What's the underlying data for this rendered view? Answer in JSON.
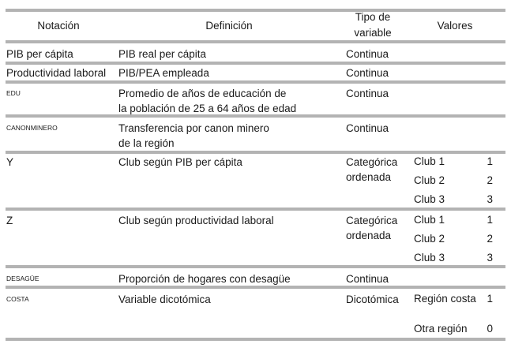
{
  "header": {
    "notacion": "Notación",
    "definicion": "Definición",
    "tipo_line1": "Tipo de",
    "tipo_line2": "variable",
    "valores": "Valores"
  },
  "rows": [
    {
      "notation": "PIB per cápita",
      "definition": [
        "PIB real per cápita"
      ],
      "type": [
        "Continua"
      ],
      "values": []
    },
    {
      "notation": "Productividad laboral",
      "definition": [
        "PIB/PEA empleada"
      ],
      "type": [
        "Continua"
      ],
      "values": []
    },
    {
      "notation": "EDU",
      "definition": [
        "Promedio de años de educación de",
        "la población de 25 a 64 años de edad"
      ],
      "type": [
        "Continua"
      ],
      "values": []
    },
    {
      "notation": "CANONMINERO",
      "definition": [
        "Transferencia por canon minero",
        "de la región"
      ],
      "type": [
        "Continua"
      ],
      "values": []
    },
    {
      "notation": "Y",
      "definition": [
        "Club según PIB per cápita"
      ],
      "type": [
        "Categórica",
        "ordenada"
      ],
      "values": [
        {
          "label": "Club 1",
          "code": "1"
        },
        {
          "label": "Club 2",
          "code": "2"
        },
        {
          "label": "Club 3",
          "code": "3"
        }
      ]
    },
    {
      "notation": "Z",
      "definition": [
        "Club según productividad laboral"
      ],
      "type": [
        "Categórica",
        "ordenada"
      ],
      "values": [
        {
          "label": "Club 1",
          "code": "1"
        },
        {
          "label": "Club 2",
          "code": "2"
        },
        {
          "label": "Club 3",
          "code": "3"
        }
      ]
    },
    {
      "notation": "DESAGÜE",
      "definition": [
        "Proporción de hogares con desagüe"
      ],
      "type": [
        "Continua"
      ],
      "values": []
    },
    {
      "notation": "COSTA",
      "definition": [
        "Variable dicotómica"
      ],
      "type": [
        "Dicotómica"
      ],
      "values": [
        {
          "label": "Región costa",
          "code": "1"
        },
        {
          "label": "Otra región",
          "code": "0"
        }
      ]
    }
  ]
}
